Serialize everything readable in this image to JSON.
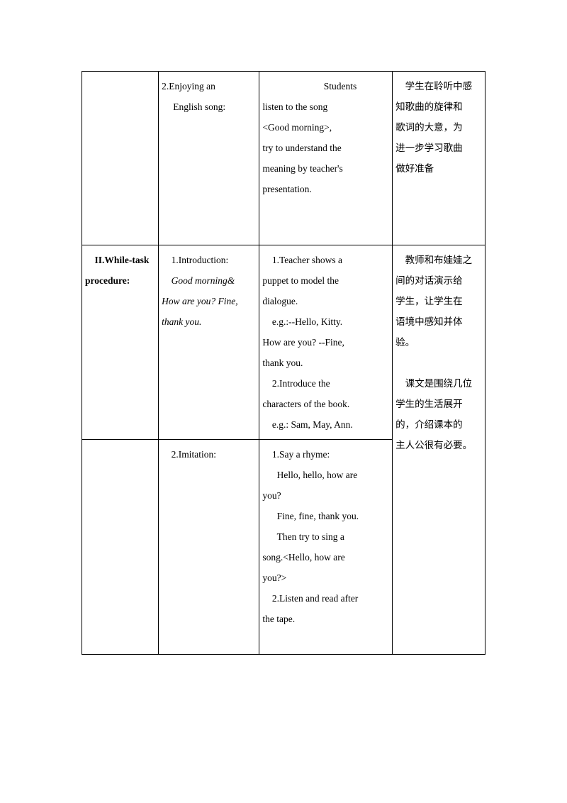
{
  "row1": {
    "col2_line1": "2.Enjoying           an",
    "col2_line2": "English song:",
    "col3_line1": "Students",
    "col3_line2": "listen   to   the   song",
    "col3_line3": "<Good        morning>,",
    "col3_line4": "try to understand the",
    "col3_line5": "meaning by teacher's",
    "col3_line6": "presentation.",
    "col4_line1": "学生在聆听中感",
    "col4_line2": "知歌曲的旋律和",
    "col4_line3": "歌词的大意，为",
    "col4_line4": "进一步学习歌曲",
    "col4_line5": "做好准备"
  },
  "row2": {
    "col1_line1": "II.While-task",
    "col1_line2": "procedure:",
    "col2_line1": "1.Introduction:",
    "col2_line2": "Good       morning&",
    "col2_line3": "How are you? Fine,",
    "col2_line4": "thank you.",
    "col3_line1": "1.Teacher    shows    a",
    "col3_line2": "puppet  to  model  the",
    "col3_line3": "dialogue.",
    "col3_line4": "e.g.:--Hello,        Kitty.",
    "col3_line5": "How  are  you?  --Fine,",
    "col3_line6": "thank you.",
    "col3_line7": "2.Introduce            the",
    "col3_line8": "characters of the book.",
    "col3_line9": "e.g.: Sam, May, Ann.",
    "col4_line1": "教师和布娃娃之",
    "col4_line2": "间的对话演示给",
    "col4_line3": "学生，让学生在",
    "col4_line4": "语境中感知并体",
    "col4_line5": "验。",
    "col4_line6": "",
    "col4_line7": "课文是围绕几位",
    "col4_line8": "学生的生活展开",
    "col4_line9": "的，介绍课本的",
    "col4_line10": "主人公很有必要。"
  },
  "row3": {
    "col2_line1": "2.Imitation:",
    "col3_line1": "1.Say a rhyme:",
    "col3_line2": "Hello, hello, how are",
    "col3_line3": "you?",
    "col3_line4": "Fine, fine, thank you.",
    "col3_line5": "Then  try  to  sing  a",
    "col3_line6": "song.<Hello,  how  are",
    "col3_line7": "you?>",
    "col3_line8": "2.Listen and read after",
    "col3_line9": "the tape."
  }
}
